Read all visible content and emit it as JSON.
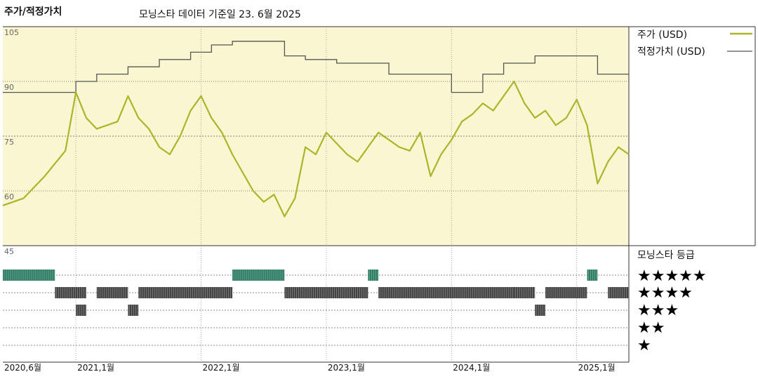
{
  "header": {
    "title": "주가/적정가치",
    "subtitle": "모닝스타 데이터 기준일 23. 6월 2025"
  },
  "legend": {
    "price_label": "주가 (USD)",
    "fair_label": "적정가치 (USD)",
    "rating_title": "모닝스타 등급",
    "stars": [
      "★★★★★",
      "★★★★",
      "★★★",
      "★★",
      "★"
    ]
  },
  "colors": {
    "price": "#aab52a",
    "fair": "#555555",
    "plot_bg": "#faf6d2",
    "five_star": "#2e7d64",
    "four_star": "#444444",
    "three_star": "#444444"
  },
  "chart_data": {
    "type": "line",
    "x_range": [
      "2020-06",
      "2025-06"
    ],
    "ylim": [
      45,
      105
    ],
    "yticks": [
      105,
      90,
      75,
      60,
      45
    ],
    "x_tick_labels": [
      "2020,6월",
      "2021,1월",
      "2022,1월",
      "2023,1월",
      "2024,1월",
      "2025,1월"
    ],
    "x_tick_dates": [
      "2020-06",
      "2021-01",
      "2022-01",
      "2023-01",
      "2024-01",
      "2025-01"
    ],
    "series": [
      {
        "name": "주가 (USD)",
        "points": [
          [
            "2020-06",
            56
          ],
          [
            "2020-08",
            58
          ],
          [
            "2020-10",
            64
          ],
          [
            "2020-12",
            71
          ],
          [
            "2021-01",
            87
          ],
          [
            "2021-02",
            80
          ],
          [
            "2021-03",
            77
          ],
          [
            "2021-05",
            79
          ],
          [
            "2021-06",
            86
          ],
          [
            "2021-07",
            80
          ],
          [
            "2021-08",
            77
          ],
          [
            "2021-09",
            72
          ],
          [
            "2021-10",
            70
          ],
          [
            "2021-11",
            75
          ],
          [
            "2021-12",
            82
          ],
          [
            "2022-01",
            86
          ],
          [
            "2022-02",
            80
          ],
          [
            "2022-03",
            76
          ],
          [
            "2022-04",
            70
          ],
          [
            "2022-05",
            65
          ],
          [
            "2022-06",
            60
          ],
          [
            "2022-07",
            57
          ],
          [
            "2022-08",
            59
          ],
          [
            "2022-09",
            53
          ],
          [
            "2022-10",
            58
          ],
          [
            "2022-11",
            72
          ],
          [
            "2022-12",
            70
          ],
          [
            "2023-01",
            76
          ],
          [
            "2023-02",
            73
          ],
          [
            "2023-03",
            70
          ],
          [
            "2023-04",
            68
          ],
          [
            "2023-05",
            72
          ],
          [
            "2023-06",
            76
          ],
          [
            "2023-07",
            74
          ],
          [
            "2023-08",
            72
          ],
          [
            "2023-09",
            71
          ],
          [
            "2023-10",
            76
          ],
          [
            "2023-11",
            64
          ],
          [
            "2023-12",
            70
          ],
          [
            "2024-01",
            74
          ],
          [
            "2024-02",
            79
          ],
          [
            "2024-03",
            81
          ],
          [
            "2024-04",
            84
          ],
          [
            "2024-05",
            82
          ],
          [
            "2024-06",
            86
          ],
          [
            "2024-07",
            90
          ],
          [
            "2024-08",
            84
          ],
          [
            "2024-09",
            80
          ],
          [
            "2024-10",
            82
          ],
          [
            "2024-11",
            78
          ],
          [
            "2024-12",
            80
          ],
          [
            "2025-01",
            85
          ],
          [
            "2025-02",
            78
          ],
          [
            "2025-03",
            62
          ],
          [
            "2025-04",
            68
          ],
          [
            "2025-05",
            72
          ],
          [
            "2025-06",
            70
          ]
        ]
      },
      {
        "name": "적정가치 (USD)",
        "steps": [
          [
            "2020-06",
            87
          ],
          [
            "2021-01",
            90
          ],
          [
            "2021-03",
            92
          ],
          [
            "2021-06",
            94
          ],
          [
            "2021-09",
            96
          ],
          [
            "2021-12",
            98
          ],
          [
            "2022-02",
            100
          ],
          [
            "2022-04",
            101
          ],
          [
            "2022-09",
            97
          ],
          [
            "2022-11",
            96
          ],
          [
            "2023-02",
            95
          ],
          [
            "2023-07",
            92
          ],
          [
            "2023-10",
            92
          ],
          [
            "2024-01",
            87
          ],
          [
            "2024-04",
            92
          ],
          [
            "2024-06",
            95
          ],
          [
            "2024-09",
            97
          ],
          [
            "2025-01",
            97
          ],
          [
            "2025-03",
            92
          ],
          [
            "2025-06",
            92
          ]
        ]
      }
    ],
    "rating": {
      "title": "모닝스타 등급",
      "rows": [
        {
          "stars": 5,
          "periods": [
            [
              "2020-06",
              "2020-11"
            ],
            [
              "2022-04",
              "2022-09"
            ],
            [
              "2023-05",
              "2023-06"
            ],
            [
              "2025-02",
              "2025-03"
            ]
          ]
        },
        {
          "stars": 4,
          "periods": [
            [
              "2020-11",
              "2021-02"
            ],
            [
              "2021-03",
              "2021-06"
            ],
            [
              "2021-07",
              "2022-04"
            ],
            [
              "2022-09",
              "2023-05"
            ],
            [
              "2023-06",
              "2024-07"
            ],
            [
              "2024-07",
              "2024-09"
            ],
            [
              "2024-10",
              "2025-02"
            ],
            [
              "2025-04",
              "2025-06"
            ]
          ]
        },
        {
          "stars": 3,
          "periods": [
            [
              "2021-01",
              "2021-02"
            ],
            [
              "2021-06",
              "2021-07"
            ],
            [
              "2024-09",
              "2024-10"
            ]
          ]
        },
        {
          "stars": 2,
          "periods": []
        },
        {
          "stars": 1,
          "periods": []
        }
      ]
    }
  }
}
